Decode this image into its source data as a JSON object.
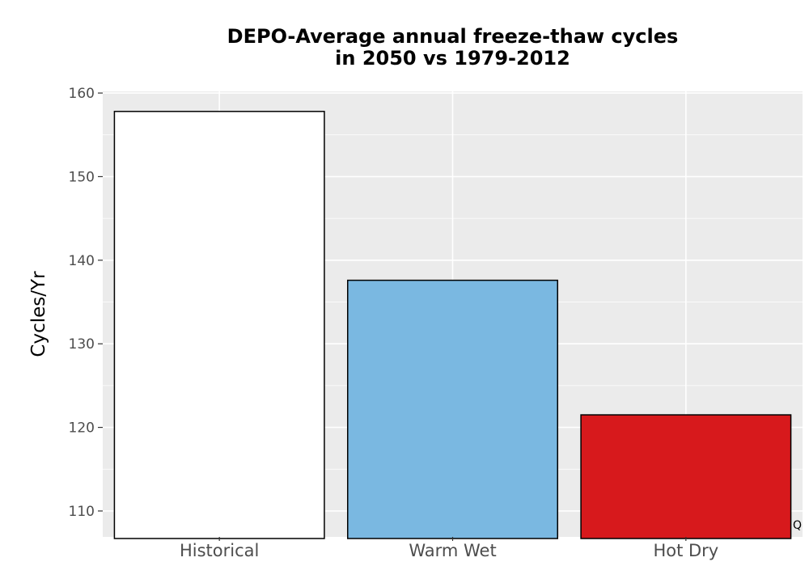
{
  "chart_data": {
    "type": "bar",
    "title": [
      "DEPO-Average annual freeze-thaw cycles",
      "in 2050 vs 1979-2012"
    ],
    "xlabel": "",
    "ylabel": "Cycles/Yr",
    "categories": [
      "Historical",
      "Warm Wet",
      "Hot Dry"
    ],
    "values": [
      157.8,
      137.6,
      121.5
    ],
    "colors": [
      "#ffffff",
      "#7ab8e1",
      "#d7191c"
    ],
    "bar_outline": "#000000",
    "ylim": [
      106.9,
      160.2
    ],
    "yticks": [
      110,
      120,
      130,
      140,
      150,
      160
    ],
    "grid": true,
    "panel_background": "#ebebeb",
    "grid_color": "#ffffff"
  },
  "corner_mark": "Q"
}
